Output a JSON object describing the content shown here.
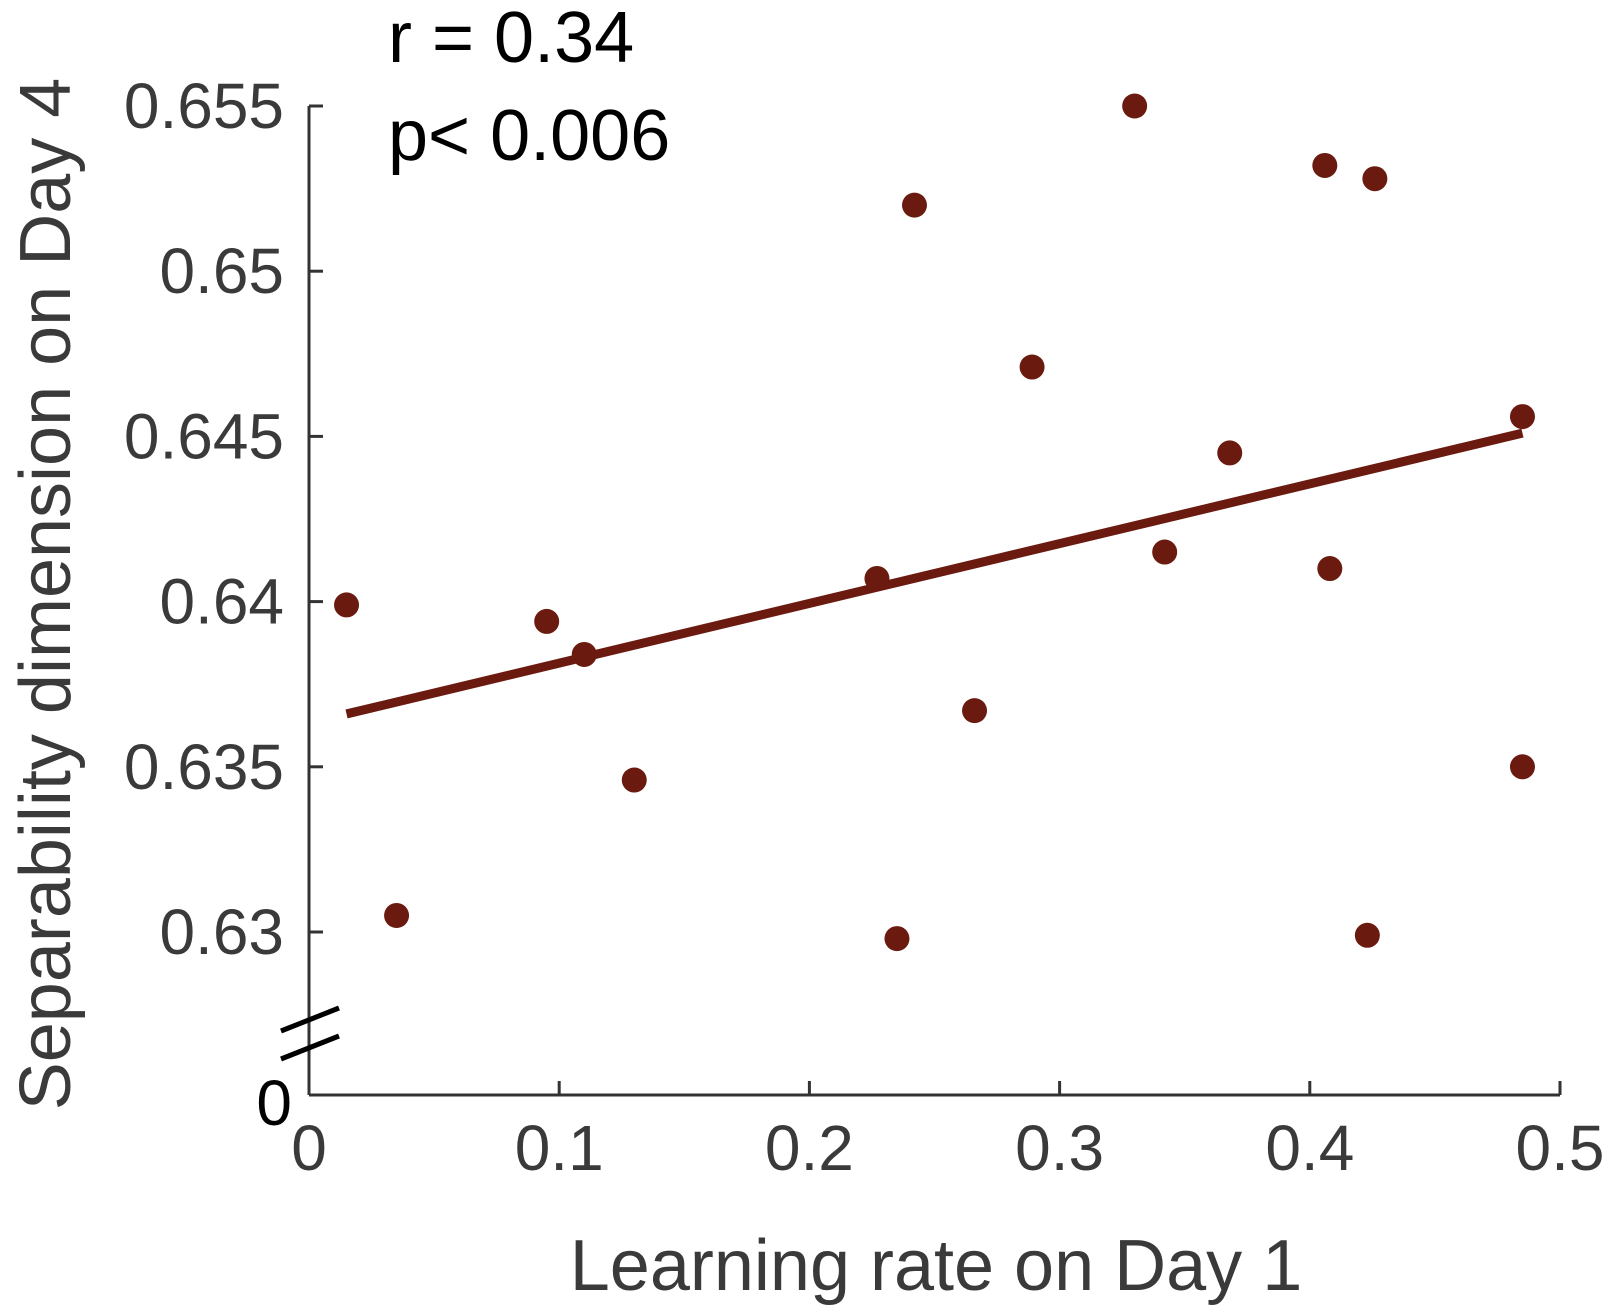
{
  "chart_data": {
    "type": "scatter",
    "xlabel": "Learning rate on Day 1",
    "ylabel": "Separability dimension on Day 4",
    "xlim": [
      0,
      0.5
    ],
    "ylim": [
      0.6255,
      0.655
    ],
    "x_ticks": [
      0,
      0.1,
      0.2,
      0.3,
      0.4,
      0.5
    ],
    "x_tick_labels": [
      "0",
      "0.1",
      "0.2",
      "0.3",
      "0.4",
      "0.5"
    ],
    "y_ticks": [
      0.63,
      0.635,
      0.64,
      0.645,
      0.65,
      0.655
    ],
    "y_tick_labels": [
      "0.63",
      "0.635",
      "0.64",
      "0.645",
      "0.65",
      "0.655"
    ],
    "y_break_label": "0",
    "axis_break": true,
    "annotations": [
      "r = 0.34",
      "p< 0.006"
    ],
    "marker_color": "#6b1a10",
    "fit_line_color": "#6b1a10",
    "points": [
      {
        "x": 0.015,
        "y": 0.6399
      },
      {
        "x": 0.035,
        "y": 0.6305
      },
      {
        "x": 0.095,
        "y": 0.6394
      },
      {
        "x": 0.11,
        "y": 0.6384
      },
      {
        "x": 0.13,
        "y": 0.6346
      },
      {
        "x": 0.227,
        "y": 0.6407
      },
      {
        "x": 0.235,
        "y": 0.6298
      },
      {
        "x": 0.242,
        "y": 0.652
      },
      {
        "x": 0.266,
        "y": 0.6367
      },
      {
        "x": 0.289,
        "y": 0.6471
      },
      {
        "x": 0.33,
        "y": 0.655
      },
      {
        "x": 0.342,
        "y": 0.6415
      },
      {
        "x": 0.368,
        "y": 0.6445
      },
      {
        "x": 0.406,
        "y": 0.6532
      },
      {
        "x": 0.408,
        "y": 0.641
      },
      {
        "x": 0.423,
        "y": 0.6299
      },
      {
        "x": 0.426,
        "y": 0.6528
      },
      {
        "x": 0.485,
        "y": 0.6456
      },
      {
        "x": 0.485,
        "y": 0.635
      }
    ],
    "fit_line": {
      "x": [
        0.015,
        0.485
      ],
      "y": [
        0.6366,
        0.6451
      ]
    }
  }
}
